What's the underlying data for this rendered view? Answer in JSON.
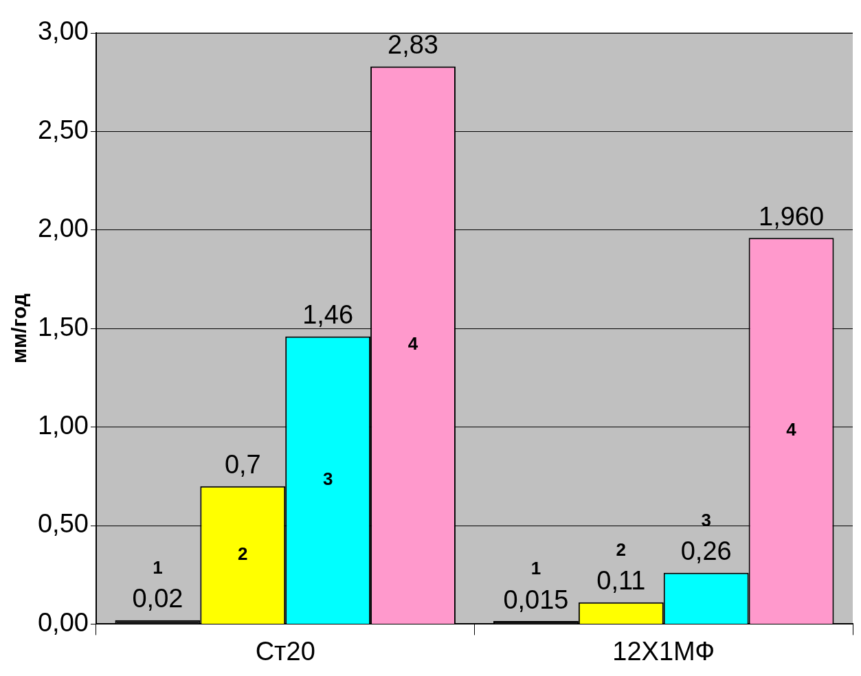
{
  "chart_data": {
    "type": "bar",
    "ylabel": "мм/год",
    "categories": [
      "Ст20",
      "12Х1МФ"
    ],
    "series": [
      {
        "name": "1",
        "color": "#1a1a1a",
        "values": [
          0.02,
          0.015
        ],
        "value_labels": [
          "0,02",
          "0,015"
        ]
      },
      {
        "name": "2",
        "color": "#ffff00",
        "values": [
          0.7,
          0.11
        ],
        "value_labels": [
          "0,7",
          "0,11"
        ]
      },
      {
        "name": "3",
        "color": "#00ffff",
        "values": [
          1.46,
          0.26
        ],
        "value_labels": [
          "1,46",
          "0,26"
        ]
      },
      {
        "name": "4",
        "color": "#ff99cc",
        "values": [
          2.83,
          1.96
        ],
        "value_labels": [
          "2,83",
          "1,960"
        ]
      }
    ],
    "ylim": [
      0,
      3
    ],
    "yticks": [
      {
        "value": 0,
        "label": "0,00"
      },
      {
        "value": 0.5,
        "label": "0,50"
      },
      {
        "value": 1,
        "label": "1,00"
      },
      {
        "value": 1.5,
        "label": "1,50"
      },
      {
        "value": 2,
        "label": "2,00"
      },
      {
        "value": 2.5,
        "label": "2,50"
      },
      {
        "value": 3,
        "label": "3,00"
      }
    ],
    "grid": "y",
    "legend": false
  }
}
